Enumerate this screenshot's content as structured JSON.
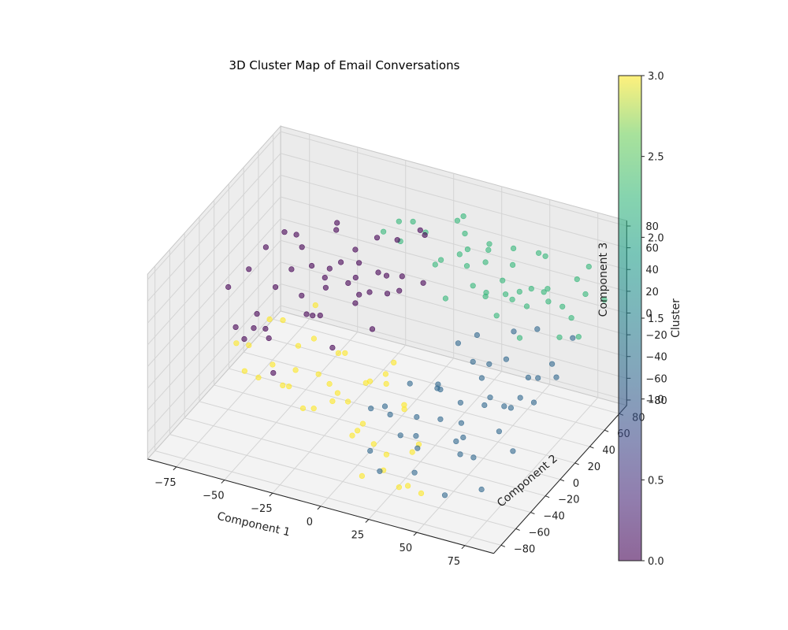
{
  "chart_data": {
    "type": "scatter",
    "projection": "3d",
    "title": "3D Cluster Map of Email Conversations",
    "xlabel": "Component 1",
    "ylabel": "Component 2",
    "zlabel": "Component 3",
    "xlim": [
      -90,
      90
    ],
    "ylim": [
      -90,
      90
    ],
    "zlim": [
      -85,
      85
    ],
    "x_ticks": [
      -75,
      -50,
      -25,
      0,
      25,
      50,
      75
    ],
    "y_ticks": [
      -80,
      -60,
      -40,
      -20,
      0,
      20,
      40,
      60,
      80
    ],
    "z_ticks": [
      -80,
      -60,
      -40,
      -20,
      0,
      20,
      40,
      60,
      80
    ],
    "x_tick_labels": [
      "−75",
      "−50",
      "−25",
      "0",
      "25",
      "50",
      "75"
    ],
    "y_tick_labels": [
      "−80",
      "−60",
      "−40",
      "−20",
      "0",
      "20",
      "40",
      "60",
      "80"
    ],
    "z_tick_labels": [
      "−80",
      "−60",
      "−40",
      "−20",
      "0",
      "20",
      "40",
      "60",
      "80"
    ],
    "grid": true,
    "colormap": "viridis",
    "marker_alpha": 0.6,
    "colorbar": {
      "label": "Cluster",
      "range": [
        0,
        3
      ],
      "ticks": [
        0.0,
        0.5,
        1.0,
        1.5,
        2.0,
        2.5,
        3.0
      ],
      "tick_labels": [
        "0.0",
        "0.5",
        "1.0",
        "1.5",
        "2.0",
        "2.5",
        "3.0"
      ]
    },
    "series": [
      {
        "cluster": 0,
        "color": "#440154",
        "points": [
          [
            -78,
            -12,
            20
          ],
          [
            -70,
            -5,
            35
          ],
          [
            -65,
            5,
            50
          ],
          [
            -60,
            -20,
            10
          ],
          [
            -58,
            12,
            62
          ],
          [
            -55,
            -8,
            28
          ],
          [
            -52,
            20,
            45
          ],
          [
            -50,
            -30,
            0
          ],
          [
            -48,
            2,
            72
          ],
          [
            -45,
            15,
            35
          ],
          [
            -44,
            -15,
            55
          ],
          [
            -42,
            25,
            18
          ],
          [
            -40,
            -5,
            8
          ],
          [
            -38,
            30,
            60
          ],
          [
            -36,
            -22,
            40
          ],
          [
            -35,
            8,
            25
          ],
          [
            -33,
            18,
            78
          ],
          [
            -31,
            -10,
            15
          ],
          [
            -30,
            35,
            42
          ],
          [
            -28,
            -28,
            30
          ],
          [
            -26,
            5,
            55
          ],
          [
            -25,
            22,
            5
          ],
          [
            -23,
            -18,
            68
          ],
          [
            -21,
            12,
            38
          ],
          [
            -20,
            40,
            22
          ],
          [
            -18,
            -6,
            48
          ],
          [
            -16,
            28,
            65
          ],
          [
            -15,
            -35,
            12
          ],
          [
            -13,
            10,
            30
          ],
          [
            -12,
            45,
            52
          ],
          [
            -10,
            -12,
            75
          ],
          [
            -8,
            20,
            40
          ],
          [
            -6,
            32,
            18
          ],
          [
            -5,
            -25,
            58
          ],
          [
            -3,
            8,
            35
          ],
          [
            -2,
            50,
            62
          ],
          [
            0,
            -20,
            25
          ],
          [
            2,
            15,
            48
          ],
          [
            5,
            38,
            70
          ],
          [
            8,
            28,
            35
          ],
          [
            -62,
            -32,
            -5
          ],
          [
            -54,
            -40,
            15
          ],
          [
            -46,
            -45,
            22
          ],
          [
            -68,
            -28,
            0
          ],
          [
            -40,
            -50,
            -12
          ]
        ]
      },
      {
        "cluster": 1,
        "color": "#31688e",
        "points": [
          [
            10,
            -48,
            -22
          ],
          [
            15,
            -35,
            -35
          ],
          [
            20,
            -55,
            -10
          ],
          [
            25,
            -25,
            -40
          ],
          [
            28,
            -42,
            5
          ],
          [
            30,
            -60,
            -28
          ],
          [
            33,
            -18,
            -15
          ],
          [
            35,
            -50,
            -45
          ],
          [
            38,
            -30,
            0
          ],
          [
            40,
            -65,
            -20
          ],
          [
            42,
            -10,
            -30
          ],
          [
            45,
            -45,
            10
          ],
          [
            48,
            -22,
            -50
          ],
          [
            50,
            -58,
            -5
          ],
          [
            52,
            -35,
            -25
          ],
          [
            55,
            -5,
            8
          ],
          [
            58,
            -52,
            -38
          ],
          [
            60,
            -28,
            15
          ],
          [
            62,
            -68,
            -12
          ],
          [
            64,
            -15,
            -42
          ],
          [
            66,
            -40,
            2
          ],
          [
            68,
            -60,
            -30
          ],
          [
            70,
            -2,
            -18
          ],
          [
            72,
            -48,
            18
          ],
          [
            74,
            -25,
            -8
          ],
          [
            76,
            -70,
            -48
          ],
          [
            78,
            -12,
            12
          ],
          [
            80,
            -38,
            -35
          ],
          [
            82,
            -55,
            20
          ],
          [
            84,
            -20,
            -2
          ],
          [
            35,
            5,
            10
          ],
          [
            40,
            12,
            -10
          ],
          [
            46,
            2,
            25
          ],
          [
            55,
            18,
            -5
          ],
          [
            62,
            10,
            30
          ],
          [
            70,
            22,
            -18
          ],
          [
            75,
            8,
            40
          ],
          [
            80,
            15,
            5
          ],
          [
            85,
            30,
            20
          ],
          [
            88,
            0,
            8
          ],
          [
            25,
            -75,
            -52
          ],
          [
            45,
            -80,
            -40
          ],
          [
            60,
            -78,
            -55
          ],
          [
            15,
            -62,
            -48
          ]
        ]
      },
      {
        "cluster": 2,
        "color": "#35b779",
        "points": [
          [
            -25,
            60,
            42
          ],
          [
            -20,
            70,
            28
          ],
          [
            -15,
            55,
            60
          ],
          [
            -10,
            78,
            35
          ],
          [
            -5,
            48,
            70
          ],
          [
            0,
            65,
            20
          ],
          [
            5,
            82,
            50
          ],
          [
            8,
            52,
            38
          ],
          [
            12,
            72,
            65
          ],
          [
            15,
            40,
            15
          ],
          [
            18,
            62,
            45
          ],
          [
            20,
            85,
            28
          ],
          [
            22,
            48,
            72
          ],
          [
            25,
            68,
            32
          ],
          [
            28,
            35,
            55
          ],
          [
            30,
            78,
            10
          ],
          [
            32,
            55,
            62
          ],
          [
            35,
            42,
            25
          ],
          [
            38,
            72,
            48
          ],
          [
            40,
            30,
            40
          ],
          [
            42,
            60,
            12
          ],
          [
            45,
            88,
            35
          ],
          [
            48,
            45,
            58
          ],
          [
            50,
            65,
            22
          ],
          [
            52,
            25,
            48
          ],
          [
            55,
            75,
            5
          ],
          [
            58,
            38,
            30
          ],
          [
            60,
            58,
            62
          ],
          [
            62,
            18,
            18
          ],
          [
            65,
            48,
            42
          ],
          [
            68,
            80,
            28
          ],
          [
            70,
            30,
            55
          ],
          [
            72,
            62,
            8
          ],
          [
            75,
            42,
            35
          ],
          [
            78,
            70,
            52
          ],
          [
            80,
            25,
            22
          ],
          [
            82,
            55,
            40
          ],
          [
            85,
            38,
            15
          ],
          [
            88,
            65,
            30
          ],
          [
            40,
            12,
            60
          ],
          [
            55,
            5,
            45
          ],
          [
            65,
            10,
            68
          ],
          [
            30,
            20,
            78
          ]
        ]
      },
      {
        "cluster": 3,
        "color": "#fde725",
        "points": [
          [
            -70,
            -5,
            -35
          ],
          [
            -65,
            10,
            -20
          ],
          [
            -60,
            -18,
            -50
          ],
          [
            -55,
            2,
            -10
          ],
          [
            -52,
            15,
            -42
          ],
          [
            -50,
            -25,
            -28
          ],
          [
            -48,
            -8,
            -60
          ],
          [
            -45,
            20,
            -5
          ],
          [
            -42,
            -32,
            -38
          ],
          [
            -40,
            5,
            -22
          ],
          [
            -38,
            -15,
            -70
          ],
          [
            -35,
            25,
            -48
          ],
          [
            -33,
            -38,
            -15
          ],
          [
            -30,
            0,
            -55
          ],
          [
            -28,
            -20,
            -30
          ],
          [
            -25,
            12,
            -78
          ],
          [
            -22,
            -42,
            -42
          ],
          [
            -20,
            -5,
            -18
          ],
          [
            -18,
            18,
            -62
          ],
          [
            -15,
            -28,
            -35
          ],
          [
            -12,
            8,
            -50
          ],
          [
            -10,
            -48,
            -25
          ],
          [
            -8,
            -12,
            -72
          ],
          [
            -5,
            22,
            -40
          ],
          [
            -2,
            -35,
            -58
          ],
          [
            0,
            -2,
            -30
          ],
          [
            3,
            -55,
            -45
          ],
          [
            5,
            10,
            -65
          ],
          [
            8,
            -22,
            -20
          ],
          [
            10,
            -60,
            -75
          ],
          [
            12,
            -8,
            -52
          ],
          [
            15,
            -40,
            -68
          ],
          [
            18,
            -65,
            -38
          ],
          [
            20,
            -18,
            -80
          ],
          [
            25,
            -70,
            -55
          ],
          [
            30,
            -50,
            -82
          ],
          [
            35,
            -75,
            -62
          ],
          [
            40,
            -58,
            -78
          ],
          [
            28,
            -30,
            -60
          ],
          [
            -65,
            -35,
            -8
          ],
          [
            -58,
            -42,
            -25
          ]
        ]
      }
    ]
  }
}
